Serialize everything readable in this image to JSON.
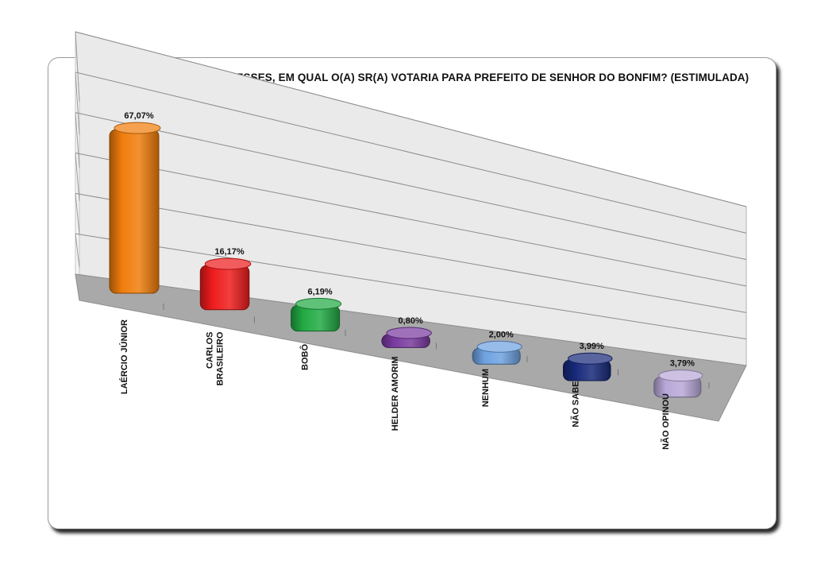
{
  "chart_data": {
    "type": "bar",
    "title": "SE OS CANDIDATOS FOSSEM ESSES, EM QUAL O(A) SR(A) VOTARIA PARA PREFEITO DE SENHOR DO BONFIM? (ESTIMULADA)",
    "categories": [
      [
        "LAÉRCIO JÚNIOR"
      ],
      [
        "CARLOS",
        "BRASILEIRO"
      ],
      [
        "BOBÔ"
      ],
      [
        "HELDER AMORIM"
      ],
      [
        "NENHUM"
      ],
      [
        "NÃO SABE"
      ],
      [
        "NÃO OPINOU"
      ]
    ],
    "values": [
      67.07,
      16.17,
      6.19,
      0.8,
      2.0,
      3.99,
      3.79
    ],
    "data_labels": [
      "67,07%",
      "16,17%",
      "6,19%",
      "0,80%",
      "2,00%",
      "3,99%",
      "3,79%"
    ],
    "colors": [
      "#f07d0c",
      "#ee1c1c",
      "#22aa44",
      "#7a3aa0",
      "#6ea2e0",
      "#17297a",
      "#b8a8d8"
    ],
    "ylim": [
      0,
      80
    ],
    "grid": true,
    "legend": "none",
    "style": "3d"
  }
}
